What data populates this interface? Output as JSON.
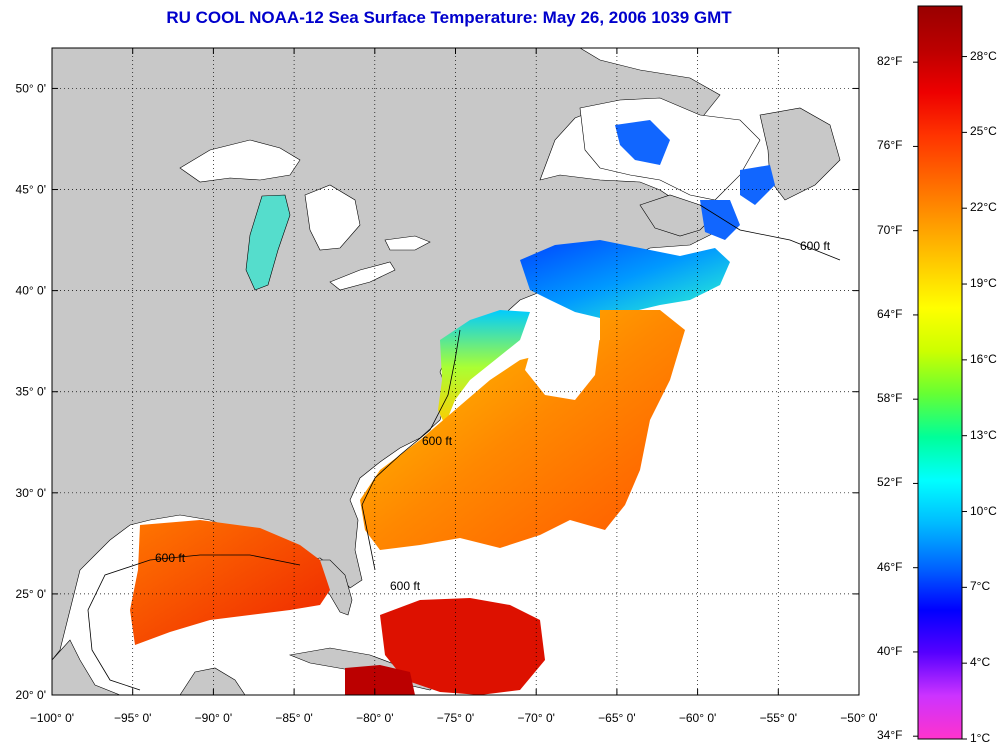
{
  "title": "RU COOL  NOAA-12  Sea Surface Temperature:  May 26, 2006 1039 GMT",
  "colors": {
    "title": "#0000cc",
    "land": "#c8c8c8",
    "nodata_cloud": "#ffffff",
    "frame": "#000000"
  },
  "map": {
    "lon_range": [
      -100,
      -50
    ],
    "lat_range": [
      20,
      52
    ],
    "lon_ticks": [
      {
        "value": -100,
        "label": "−100° 0'"
      },
      {
        "value": -95,
        "label": "−95° 0'"
      },
      {
        "value": -90,
        "label": "−90° 0'"
      },
      {
        "value": -85,
        "label": "−85° 0'"
      },
      {
        "value": -80,
        "label": "−80° 0'"
      },
      {
        "value": -75,
        "label": "−75° 0'"
      },
      {
        "value": -70,
        "label": "−70° 0'"
      },
      {
        "value": -65,
        "label": "−65° 0'"
      },
      {
        "value": -60,
        "label": "−60° 0'"
      },
      {
        "value": -55,
        "label": "−55° 0'"
      },
      {
        "value": -50,
        "label": "−50° 0'"
      }
    ],
    "lat_ticks": [
      {
        "value": 50,
        "label": "50° 0'"
      },
      {
        "value": 45,
        "label": "45° 0'"
      },
      {
        "value": 40,
        "label": "40° 0'"
      },
      {
        "value": 35,
        "label": "35° 0'"
      },
      {
        "value": 30,
        "label": "30° 0'"
      },
      {
        "value": 25,
        "label": "25° 0'"
      },
      {
        "value": 20,
        "label": "20° 0'"
      }
    ],
    "grid": "dotted",
    "isobath_label": "600 ft"
  },
  "colorbar": {
    "min_c": 1,
    "max_c": 30,
    "gradient": [
      "#ff33cc",
      "#cc33ff",
      "#5500ff",
      "#0000ff",
      "#0066ff",
      "#00bbff",
      "#00ffff",
      "#00ff99",
      "#66ff33",
      "#ccff00",
      "#ffff00",
      "#ffcc00",
      "#ff9900",
      "#ff6600",
      "#ff3300",
      "#ee0000",
      "#bb0000",
      "#990000"
    ],
    "fahrenheit": [
      {
        "value": 34,
        "label": "34°F"
      },
      {
        "value": 40,
        "label": "40°F"
      },
      {
        "value": 46,
        "label": "46°F"
      },
      {
        "value": 52,
        "label": "52°F"
      },
      {
        "value": 58,
        "label": "58°F"
      },
      {
        "value": 64,
        "label": "64°F"
      },
      {
        "value": 70,
        "label": "70°F"
      },
      {
        "value": 76,
        "label": "76°F"
      },
      {
        "value": 82,
        "label": "82°F"
      }
    ],
    "celsius": [
      {
        "value": 1,
        "label": "1°C"
      },
      {
        "value": 4,
        "label": "4°C"
      },
      {
        "value": 7,
        "label": "7°C"
      },
      {
        "value": 10,
        "label": "10°C"
      },
      {
        "value": 13,
        "label": "13°C"
      },
      {
        "value": 16,
        "label": "16°C"
      },
      {
        "value": 19,
        "label": "19°C"
      },
      {
        "value": 22,
        "label": "22°C"
      },
      {
        "value": 25,
        "label": "25°C"
      },
      {
        "value": 28,
        "label": "28°C"
      }
    ]
  }
}
